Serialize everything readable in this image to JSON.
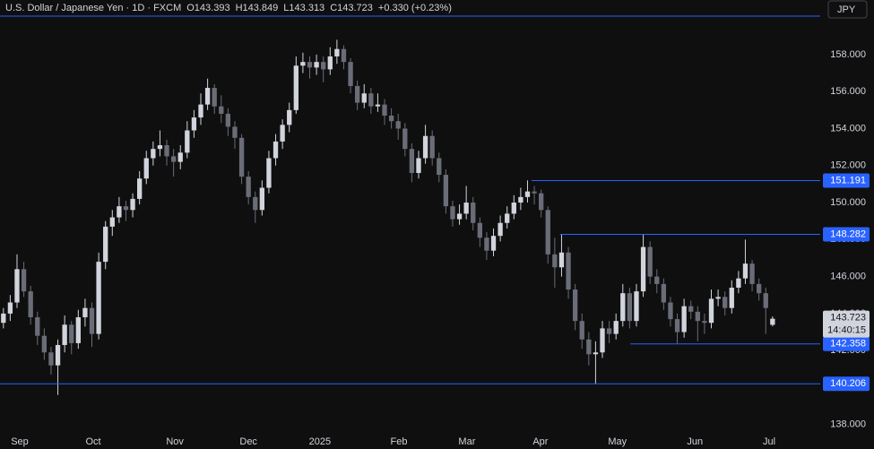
{
  "header": {
    "symbol": "U.S. Dollar / Japanese Yen · 1D · FXCM",
    "open": "O143.393",
    "high": "H143.849",
    "low": "L143.313",
    "close": "C143.723",
    "change": "+0.330 (+0.23%)",
    "currency": "JPY",
    "countdown": "14:40:15"
  },
  "chart_data": {
    "type": "candlestick",
    "up_color": "#d1d4dc",
    "down_color": "#6a6d78",
    "level_color": "#2962ff",
    "ylim": [
      137.6,
      160.95
    ],
    "xlim": [
      -0.5,
      120
    ],
    "yticks": [
      {
        "value": 138,
        "label": "138.000"
      },
      {
        "value": 140,
        "label": "140.000"
      },
      {
        "value": 142,
        "label": "142.000"
      },
      {
        "value": 144,
        "label": "144.000"
      },
      {
        "value": 146,
        "label": "146.000"
      },
      {
        "value": 148,
        "label": "148.000"
      },
      {
        "value": 150,
        "label": "150.000"
      },
      {
        "value": 152,
        "label": "152.000"
      },
      {
        "value": 154,
        "label": "154.000"
      },
      {
        "value": 156,
        "label": "156.000"
      },
      {
        "value": 158,
        "label": "158.000"
      }
    ],
    "xticks": [
      {
        "value": 2.4,
        "label": "Sep"
      },
      {
        "value": 13.2,
        "label": "Oct"
      },
      {
        "value": 25.2,
        "label": "Nov"
      },
      {
        "value": 36.0,
        "label": "Dec"
      },
      {
        "value": 46.5,
        "label": "2025"
      },
      {
        "value": 58.1,
        "label": "Feb"
      },
      {
        "value": 68.1,
        "label": "Mar"
      },
      {
        "value": 78.9,
        "label": "Apr"
      },
      {
        "value": 90.2,
        "label": "May"
      },
      {
        "value": 101.6,
        "label": "Jun"
      },
      {
        "value": 112.5,
        "label": "Jul"
      }
    ],
    "levels": [
      {
        "value": 160.08,
        "from": -0.5
      },
      {
        "value": 151.191,
        "from": 77.6
      },
      {
        "value": 148.282,
        "from": 81.8
      },
      {
        "value": 142.358,
        "from": 92.1
      },
      {
        "value": 140.206,
        "from": -0.5
      }
    ],
    "ohlc": [
      [
        143.5,
        144.3,
        143.2,
        144.0
      ],
      [
        144.0,
        145.0,
        143.6,
        144.6
      ],
      [
        144.6,
        147.2,
        144.3,
        146.4
      ],
      [
        146.4,
        146.8,
        144.9,
        145.2
      ],
      [
        145.2,
        145.5,
        143.4,
        143.8
      ],
      [
        143.8,
        144.1,
        142.3,
        142.8
      ],
      [
        142.8,
        143.2,
        141.5,
        141.9
      ],
      [
        141.9,
        142.2,
        140.7,
        141.2
      ],
      [
        141.2,
        142.6,
        139.6,
        142.3
      ],
      [
        142.3,
        143.9,
        141.9,
        143.4
      ],
      [
        143.4,
        143.6,
        141.8,
        142.4
      ],
      [
        142.4,
        144.2,
        142.1,
        143.8
      ],
      [
        143.8,
        144.8,
        143.3,
        144.3
      ],
      [
        144.3,
        144.6,
        142.2,
        142.9
      ],
      [
        142.9,
        147.3,
        142.6,
        146.8
      ],
      [
        146.8,
        149.0,
        146.4,
        148.7
      ],
      [
        148.7,
        149.6,
        148.2,
        149.2
      ],
      [
        149.2,
        150.3,
        148.9,
        149.8
      ],
      [
        149.8,
        150.1,
        149.0,
        149.6
      ],
      [
        149.6,
        150.5,
        149.2,
        150.2
      ],
      [
        150.2,
        151.7,
        149.9,
        151.3
      ],
      [
        151.3,
        152.8,
        151.0,
        152.4
      ],
      [
        152.4,
        153.3,
        152.0,
        152.9
      ],
      [
        152.9,
        153.9,
        152.5,
        153.1
      ],
      [
        153.1,
        153.4,
        152.0,
        152.5
      ],
      [
        152.5,
        152.9,
        151.4,
        152.2
      ],
      [
        152.2,
        153.1,
        151.8,
        152.7
      ],
      [
        152.7,
        154.4,
        152.4,
        153.9
      ],
      [
        153.9,
        155.0,
        153.5,
        154.6
      ],
      [
        154.6,
        155.9,
        154.2,
        155.3
      ],
      [
        155.3,
        156.7,
        155.0,
        156.2
      ],
      [
        156.2,
        156.4,
        154.8,
        155.2
      ],
      [
        155.2,
        155.8,
        154.3,
        154.8
      ],
      [
        154.8,
        155.1,
        153.6,
        154.1
      ],
      [
        154.1,
        154.4,
        152.9,
        153.5
      ],
      [
        153.5,
        153.7,
        151.0,
        151.4
      ],
      [
        151.4,
        151.7,
        149.9,
        150.3
      ],
      [
        150.3,
        150.6,
        148.9,
        149.6
      ],
      [
        149.6,
        151.2,
        149.3,
        150.8
      ],
      [
        150.8,
        152.8,
        150.5,
        152.4
      ],
      [
        152.4,
        153.7,
        152.0,
        153.3
      ],
      [
        153.3,
        154.5,
        152.9,
        154.2
      ],
      [
        154.2,
        155.4,
        153.8,
        155.0
      ],
      [
        155.0,
        157.9,
        154.8,
        157.4
      ],
      [
        157.4,
        158.1,
        157.0,
        157.6
      ],
      [
        157.6,
        157.9,
        156.7,
        157.3
      ],
      [
        157.3,
        158.0,
        156.9,
        157.6
      ],
      [
        157.6,
        157.9,
        156.5,
        157.2
      ],
      [
        157.2,
        158.4,
        156.9,
        157.9
      ],
      [
        157.9,
        158.8,
        157.5,
        158.3
      ],
      [
        158.3,
        158.5,
        157.2,
        157.6
      ],
      [
        157.6,
        157.8,
        155.9,
        156.3
      ],
      [
        156.3,
        156.6,
        155.0,
        155.4
      ],
      [
        155.4,
        156.4,
        155.1,
        155.9
      ],
      [
        155.9,
        156.2,
        154.8,
        155.2
      ],
      [
        155.2,
        155.9,
        154.9,
        155.3
      ],
      [
        155.3,
        155.6,
        154.2,
        154.7
      ],
      [
        154.7,
        155.1,
        154.0,
        154.4
      ],
      [
        154.4,
        154.8,
        153.4,
        154.0
      ],
      [
        154.0,
        154.3,
        152.5,
        152.9
      ],
      [
        152.9,
        153.2,
        151.1,
        151.6
      ],
      [
        151.6,
        152.8,
        151.3,
        152.4
      ],
      [
        152.4,
        154.2,
        152.1,
        153.6
      ],
      [
        153.6,
        153.9,
        152.0,
        152.4
      ],
      [
        152.4,
        152.7,
        151.1,
        151.5
      ],
      [
        151.5,
        151.8,
        149.4,
        149.8
      ],
      [
        149.8,
        150.1,
        148.7,
        149.1
      ],
      [
        149.1,
        149.9,
        148.8,
        149.4
      ],
      [
        149.4,
        150.9,
        149.1,
        150.0
      ],
      [
        150.0,
        150.3,
        148.5,
        148.9
      ],
      [
        148.9,
        149.2,
        147.6,
        148.1
      ],
      [
        148.1,
        148.4,
        146.9,
        147.4
      ],
      [
        147.4,
        148.6,
        147.1,
        148.2
      ],
      [
        148.2,
        149.3,
        147.9,
        148.9
      ],
      [
        148.9,
        149.8,
        148.6,
        149.4
      ],
      [
        149.4,
        150.4,
        149.1,
        150.0
      ],
      [
        150.0,
        150.8,
        149.6,
        150.3
      ],
      [
        150.3,
        151.2,
        150.0,
        150.6
      ],
      [
        150.6,
        150.9,
        149.9,
        150.5
      ],
      [
        150.5,
        150.7,
        149.2,
        149.6
      ],
      [
        149.6,
        149.8,
        146.7,
        147.2
      ],
      [
        147.2,
        148.1,
        145.4,
        146.5
      ],
      [
        146.5,
        148.3,
        146.0,
        147.3
      ],
      [
        147.3,
        147.6,
        144.8,
        145.3
      ],
      [
        145.3,
        145.6,
        143.1,
        143.6
      ],
      [
        143.6,
        144.0,
        142.1,
        142.6
      ],
      [
        142.6,
        143.0,
        141.2,
        141.8
      ],
      [
        141.8,
        142.5,
        140.2,
        141.9
      ],
      [
        141.9,
        143.6,
        141.6,
        143.2
      ],
      [
        143.2,
        143.6,
        142.4,
        142.9
      ],
      [
        142.9,
        144.0,
        142.6,
        143.6
      ],
      [
        143.6,
        145.6,
        143.3,
        145.1
      ],
      [
        145.1,
        145.4,
        143.2,
        143.6
      ],
      [
        143.6,
        145.6,
        143.3,
        145.2
      ],
      [
        145.2,
        148.3,
        144.9,
        147.6
      ],
      [
        147.6,
        147.9,
        145.6,
        146.0
      ],
      [
        146.0,
        146.4,
        145.1,
        145.6
      ],
      [
        145.6,
        145.9,
        144.2,
        144.6
      ],
      [
        144.6,
        144.9,
        143.3,
        143.7
      ],
      [
        143.7,
        144.0,
        142.4,
        143.0
      ],
      [
        143.0,
        144.8,
        142.7,
        144.4
      ],
      [
        144.4,
        144.7,
        143.7,
        144.1
      ],
      [
        144.1,
        144.4,
        142.5,
        143.6
      ],
      [
        143.6,
        144.0,
        142.9,
        143.5
      ],
      [
        143.5,
        145.3,
        143.2,
        144.8
      ],
      [
        144.8,
        145.3,
        144.4,
        144.9
      ],
      [
        144.9,
        145.2,
        143.9,
        144.3
      ],
      [
        144.3,
        145.8,
        144.0,
        145.4
      ],
      [
        145.4,
        146.3,
        145.1,
        145.9
      ],
      [
        145.9,
        148.0,
        145.6,
        146.7
      ],
      [
        146.7,
        146.9,
        145.2,
        145.6
      ],
      [
        145.6,
        145.9,
        144.7,
        145.1
      ],
      [
        145.1,
        145.4,
        142.9,
        144.3
      ],
      [
        143.393,
        143.849,
        143.313,
        143.723
      ]
    ]
  }
}
